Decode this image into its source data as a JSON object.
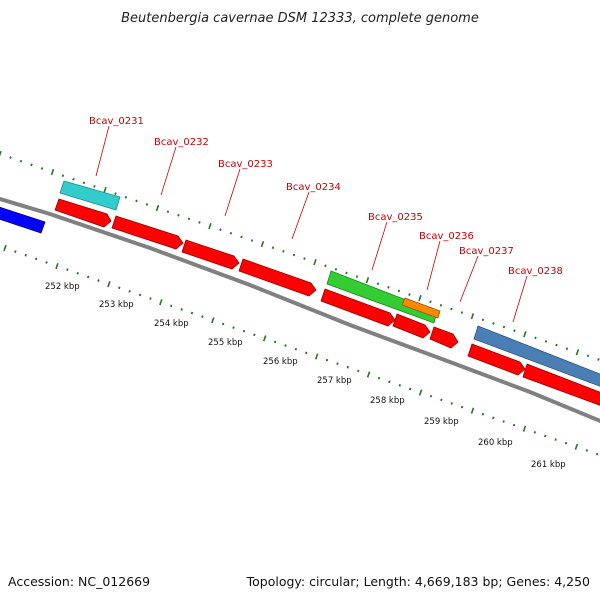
{
  "header": {
    "title": "Beutenbergia cavernae DSM 12333, complete genome"
  },
  "footer": {
    "accession": "Accession: NC_012669",
    "summary": "Topology: circular; Length: 4,669,183 bp; Genes: 4,250"
  },
  "colors": {
    "backbone": "#808080",
    "forward_cds": "#ff0000",
    "blue_feature": "#0000ff",
    "cyan_feature": "#33cccc",
    "green_feature": "#33cc33",
    "orange_feature": "#ff8800",
    "steelblue_feature": "#4a7fb5",
    "tick": "#227722",
    "label": "#cc0000"
  },
  "gene_labels": [
    {
      "text": "Bcav_0231"
    },
    {
      "text": "Bcav_0232"
    },
    {
      "text": "Bcav_0233"
    },
    {
      "text": "Bcav_0234"
    },
    {
      "text": "Bcav_0235"
    },
    {
      "text": "Bcav_0236"
    },
    {
      "text": "Bcav_0237"
    },
    {
      "text": "Bcav_0238"
    }
  ],
  "kbp_labels": [
    "252 kbp",
    "253 kbp",
    "254 kbp",
    "255 kbp",
    "256 kbp",
    "257 kbp",
    "258 kbp",
    "259 kbp",
    "260 kbp",
    "261 kbp"
  ]
}
